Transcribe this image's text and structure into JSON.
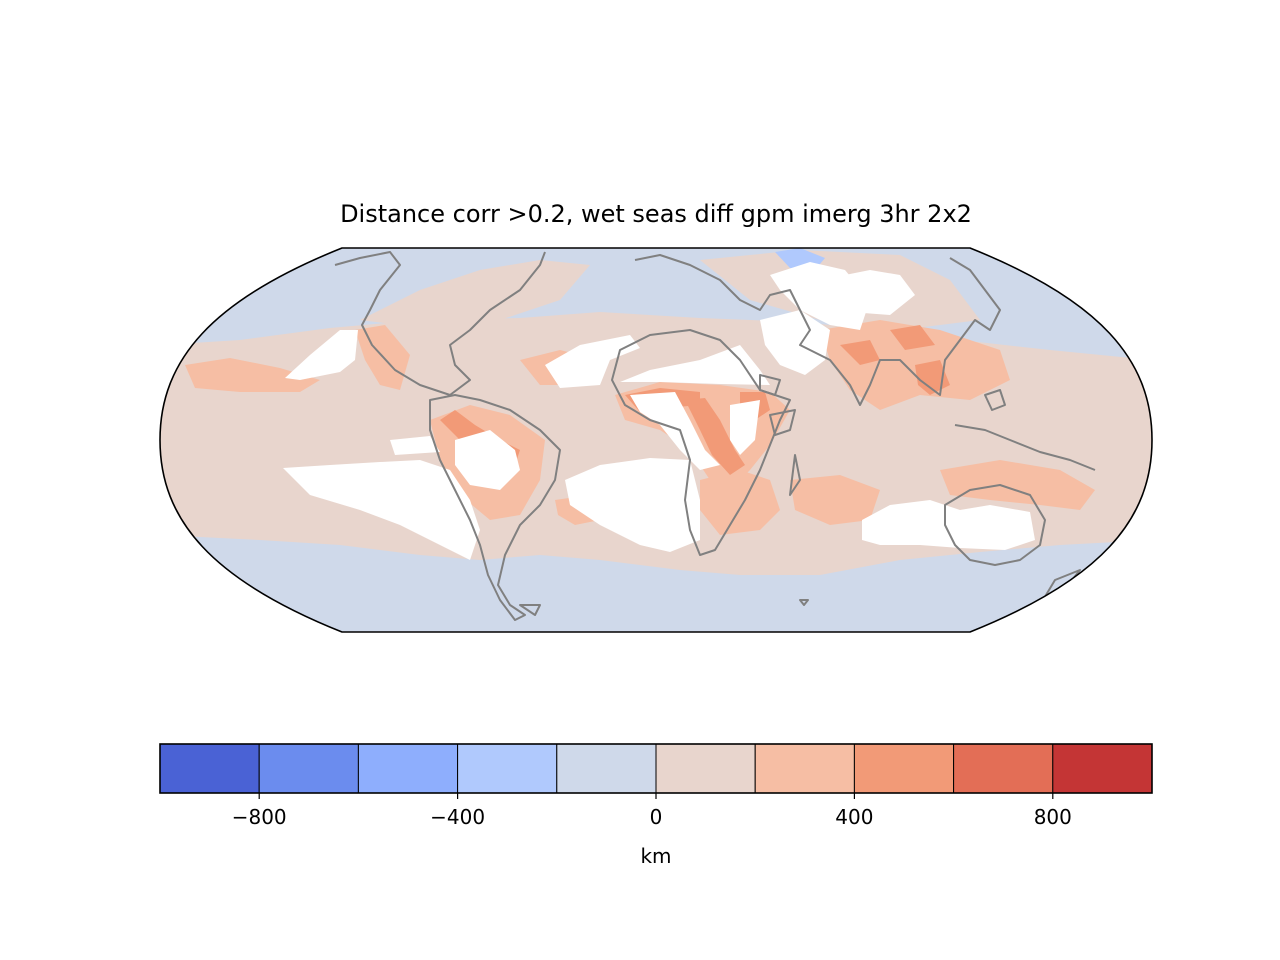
{
  "title": "Distance corr >0.2, wet seas diff gpm imerg 3hr 2x2",
  "colorbar": {
    "unit": "km",
    "min": -1000,
    "max": 1000,
    "bins": [
      {
        "from": -1000,
        "to": -800,
        "color": "#4a62d5"
      },
      {
        "from": -800,
        "to": -600,
        "color": "#6b8cee"
      },
      {
        "from": -600,
        "to": -400,
        "color": "#8eaefd"
      },
      {
        "from": -400,
        "to": -200,
        "color": "#b0c9fd"
      },
      {
        "from": -200,
        "to": 0,
        "color": "#cfd9ea"
      },
      {
        "from": 0,
        "to": 200,
        "color": "#e8d5cd"
      },
      {
        "from": 200,
        "to": 400,
        "color": "#f6bea4"
      },
      {
        "from": 400,
        "to": 600,
        "color": "#f29a77"
      },
      {
        "from": 600,
        "to": 800,
        "color": "#e36e56"
      },
      {
        "from": 800,
        "to": 1000,
        "color": "#c43535"
      }
    ],
    "ticks": [
      {
        "value": -800,
        "label": "−800"
      },
      {
        "value": -400,
        "label": "−400"
      },
      {
        "value": 0,
        "label": "0"
      },
      {
        "value": 400,
        "label": "400"
      },
      {
        "value": 800,
        "label": "800"
      }
    ]
  },
  "map": {
    "projection": "Robinson",
    "coastline_color": "#808080",
    "missing_color": "#ffffff"
  }
}
